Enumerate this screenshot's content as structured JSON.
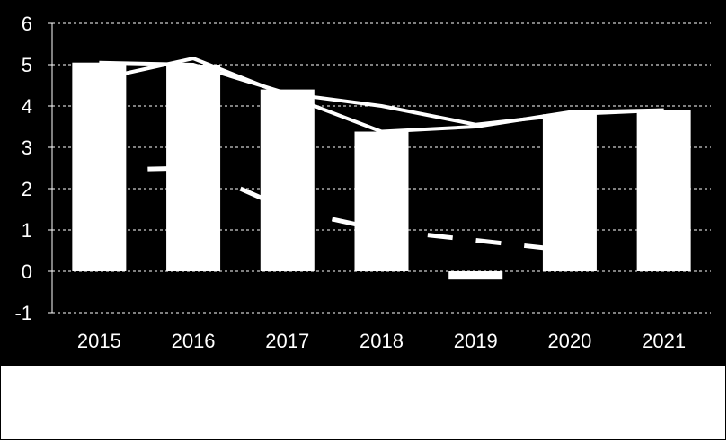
{
  "chart_data": {
    "type": "bar",
    "title": "",
    "xlabel": "",
    "ylabel": "",
    "categories": [
      "2015",
      "2016",
      "2017",
      "2018",
      "2019",
      "2020",
      "2021"
    ],
    "ylim": [
      -1,
      6
    ],
    "yticks": [
      "-1",
      "0",
      "1",
      "2",
      "3",
      "4",
      "5",
      "6"
    ],
    "grid": true,
    "legend": "none",
    "background_color": "#000000",
    "mark_color": "#ffffff",
    "bars": {
      "values": [
        5.05,
        5.0,
        4.4,
        3.38,
        -0.2,
        3.8,
        3.9
      ]
    },
    "lines": [
      {
        "style": "solid",
        "x": [
          "2015",
          "2016",
          "2017",
          "2018",
          "2019",
          "2020",
          "2021"
        ],
        "values": [
          5.05,
          5.0,
          4.3,
          4.0,
          3.55,
          3.8,
          3.9
        ]
      },
      {
        "style": "solid",
        "x": [
          "2015",
          "2016",
          "2017",
          "2018",
          "2019",
          "2020",
          "2021"
        ],
        "values": [
          4.65,
          5.15,
          4.25,
          3.38,
          3.5,
          3.85,
          3.9
        ]
      },
      {
        "style": "dashed",
        "x": [
          "2015",
          "2016",
          "2017",
          "2018",
          "2019",
          "2020"
        ],
        "values": [
          2.45,
          2.5,
          1.5,
          1.0,
          0.75,
          0.5
        ]
      }
    ]
  }
}
